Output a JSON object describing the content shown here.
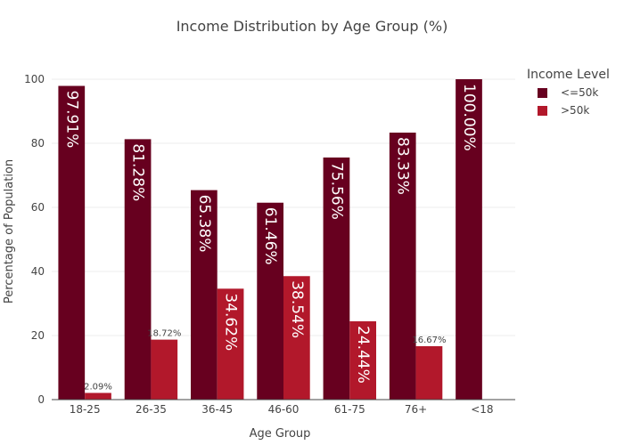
{
  "chart_data": {
    "type": "bar",
    "title": "Income Distribution by Age Group (%)",
    "xlabel": "Age Group",
    "ylabel": "Percentage of Population",
    "categories": [
      "18-25",
      "26-35",
      "36-45",
      "46-60",
      "61-75",
      "76+",
      "<18"
    ],
    "series": [
      {
        "name": "<=50k",
        "color": "#67001f",
        "values": [
          97.91,
          81.28,
          65.38,
          61.46,
          75.56,
          83.33,
          100.0
        ],
        "labels": [
          "97.91%",
          "81.28%",
          "65.38%",
          "61.46%",
          "75.56%",
          "83.33%",
          "100.00%"
        ]
      },
      {
        "name": ">50k",
        "color": "#b2182b",
        "values": [
          2.09,
          18.72,
          34.62,
          38.54,
          24.44,
          16.67,
          null
        ],
        "labels": [
          "2.09%",
          "18.72%",
          "34.62%",
          "38.54%",
          "24.44%",
          "16.67%",
          ""
        ]
      }
    ],
    "ylim": [
      0,
      100
    ],
    "yticks": [
      0,
      20,
      40,
      60,
      80,
      100
    ],
    "grid": true,
    "legend": {
      "title": "Income Level",
      "position": "top-right"
    }
  }
}
